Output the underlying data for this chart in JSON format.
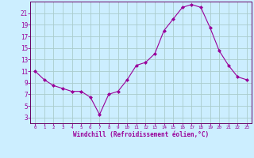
{
  "x": [
    0,
    1,
    2,
    3,
    4,
    5,
    6,
    7,
    8,
    9,
    10,
    11,
    12,
    13,
    14,
    15,
    16,
    17,
    18,
    19,
    20,
    21,
    22,
    23
  ],
  "y": [
    11,
    9.5,
    8.5,
    8,
    7.5,
    7.5,
    6.5,
    3.5,
    7,
    7.5,
    9.5,
    12,
    12.5,
    14,
    18,
    20,
    22,
    22.5,
    22,
    18.5,
    14.5,
    12,
    10,
    9.5
  ],
  "line_color": "#990099",
  "marker_color": "#990099",
  "bg_color": "#cceeff",
  "grid_color": "#aacccc",
  "xlabel": "Windchill (Refroidissement éolien,°C)",
  "xlim": [
    -0.5,
    23.5
  ],
  "ylim": [
    2,
    23
  ],
  "yticks": [
    3,
    5,
    7,
    9,
    11,
    13,
    15,
    17,
    19,
    21
  ],
  "xticks": [
    0,
    1,
    2,
    3,
    4,
    5,
    6,
    7,
    8,
    9,
    10,
    11,
    12,
    13,
    14,
    15,
    16,
    17,
    18,
    19,
    20,
    21,
    22,
    23
  ],
  "xlabel_color": "#990099",
  "tick_color": "#990099",
  "axis_color": "#990099",
  "spine_color": "#660066"
}
